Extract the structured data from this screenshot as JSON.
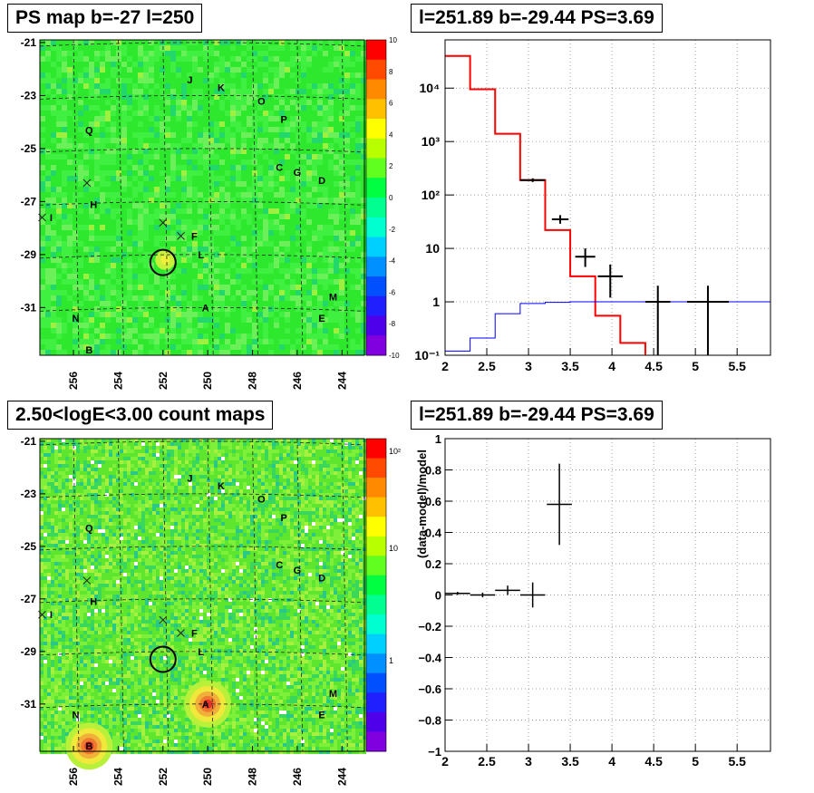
{
  "chart_data": [
    {
      "id": "ps_map",
      "type": "heatmap",
      "title": "PS map b=-27 l=250",
      "x_ticks": [
        "256",
        "254",
        "252",
        "250",
        "248",
        "246",
        "244"
      ],
      "y_ticks": [
        "-21",
        "-23",
        "-25",
        "-27",
        "-29",
        "-31"
      ],
      "xlim": [
        257.5,
        243
      ],
      "ylim": [
        -32.8,
        -20.9
      ],
      "colorbar": {
        "range": [
          -10,
          10
        ],
        "scale": "linear",
        "ticks": [
          "10",
          "8",
          "6",
          "4",
          "2",
          "0",
          "-2",
          "-4",
          "-6",
          "-8",
          "-10"
        ]
      },
      "sources": [
        {
          "label": "J",
          "l": 250.8,
          "b": -22.4
        },
        {
          "label": "K",
          "l": 249.4,
          "b": -22.7
        },
        {
          "label": "O",
          "l": 247.6,
          "b": -23.2
        },
        {
          "label": "P",
          "l": 246.6,
          "b": -23.9
        },
        {
          "label": "Q",
          "l": 255.3,
          "b": -24.3
        },
        {
          "label": "C",
          "l": 246.8,
          "b": -25.7
        },
        {
          "label": "G",
          "l": 246.0,
          "b": -25.9
        },
        {
          "label": "D",
          "l": 244.9,
          "b": -26.2
        },
        {
          "label": "H",
          "l": 255.1,
          "b": -27.1
        },
        {
          "label": "I",
          "l": 257.0,
          "b": -27.6
        },
        {
          "label": "F",
          "l": 250.6,
          "b": -28.3
        },
        {
          "label": "L",
          "l": 250.3,
          "b": -29.0
        },
        {
          "label": "M",
          "l": 244.4,
          "b": -30.6
        },
        {
          "label": "A",
          "l": 250.1,
          "b": -31.0
        },
        {
          "label": "N",
          "l": 255.9,
          "b": -31.4
        },
        {
          "label": "E",
          "l": 244.9,
          "b": -31.4
        },
        {
          "label": "B",
          "l": 255.3,
          "b": -32.6
        }
      ],
      "markers": [
        {
          "type": "cross",
          "l": 255.4,
          "b": -26.3
        },
        {
          "type": "cross",
          "l": 252.0,
          "b": -27.8
        },
        {
          "type": "cross",
          "l": 251.2,
          "b": -28.3
        },
        {
          "type": "cross",
          "l": 257.4,
          "b": -27.6
        },
        {
          "type": "circle",
          "l": 252.0,
          "b": -29.3
        }
      ]
    },
    {
      "id": "count_map",
      "type": "heatmap",
      "title": "2.50<logE<3.00 count maps",
      "x_ticks": [
        "256",
        "254",
        "252",
        "250",
        "248",
        "246",
        "244"
      ],
      "y_ticks": [
        "-21",
        "-23",
        "-25",
        "-27",
        "-29",
        "-31"
      ],
      "xlim": [
        257.5,
        243
      ],
      "ylim": [
        -32.8,
        -20.9
      ],
      "colorbar": {
        "scale": "log",
        "ticks": [
          "10²",
          "10",
          "1"
        ]
      },
      "bright_spots": [
        {
          "label": "A",
          "l": 250.0,
          "b": -31.0
        },
        {
          "label": "B",
          "l": 255.3,
          "b": -32.6
        }
      ]
    },
    {
      "id": "spectrum",
      "type": "line",
      "title": "l=251.89 b=-29.44 PS=3.69",
      "xlim": [
        2,
        5.9
      ],
      "ylim": [
        0.1,
        80000
      ],
      "yscale": "log",
      "grid": true,
      "x_ticks": [
        "2",
        "2.5",
        "3",
        "3.5",
        "4",
        "4.5",
        "5",
        "5.5"
      ],
      "y_ticks": [
        "10⁻¹",
        "1",
        "10",
        "10²",
        "10³",
        "10⁴"
      ],
      "series": [
        {
          "color": "#ff0000",
          "style": "step",
          "edges": [
            2.0,
            2.3,
            2.6,
            2.9,
            3.2,
            3.5,
            3.8,
            4.1,
            4.4
          ],
          "values": [
            40000,
            9500,
            1400,
            190,
            22,
            3,
            0.55,
            0.17
          ]
        },
        {
          "color": "#0000ff",
          "style": "step",
          "edges": [
            2.0,
            2.3,
            2.6,
            2.9,
            3.2,
            3.5,
            3.8,
            4.1,
            4.4,
            4.7,
            5.0,
            5.9
          ],
          "values": [
            0.12,
            0.21,
            0.6,
            0.93,
            0.98,
            1.0,
            1.0,
            1.0,
            1.0,
            1.0,
            1.0
          ]
        },
        {
          "color": "#000000",
          "style": "errorbar",
          "points": [
            {
              "x": 3.05,
              "xerr": 0.15,
              "y": 190,
              "lo": 175,
              "hi": 205
            },
            {
              "x": 3.38,
              "xerr": 0.1,
              "y": 35,
              "lo": 29,
              "hi": 42
            },
            {
              "x": 3.68,
              "xerr": 0.12,
              "y": 7,
              "lo": 4.5,
              "hi": 10
            },
            {
              "x": 3.98,
              "xerr": 0.15,
              "y": 3,
              "lo": 1.2,
              "hi": 5
            },
            {
              "x": 4.55,
              "xerr": 0.15,
              "y": 1,
              "lo": 0.1,
              "hi": 2
            },
            {
              "x": 5.15,
              "xerr": 0.25,
              "y": 1,
              "lo": 0.1,
              "hi": 2
            }
          ]
        }
      ]
    },
    {
      "id": "residual",
      "type": "scatter",
      "title": "l=251.89 b=-29.44 PS=3.69",
      "ylabel": "(data-model)/model",
      "xlim": [
        2,
        5.9
      ],
      "ylim": [
        -1,
        1
      ],
      "grid": true,
      "x_ticks": [
        "2",
        "2.5",
        "3",
        "3.5",
        "4",
        "4.5",
        "5",
        "5.5"
      ],
      "y_ticks": [
        "1",
        "0.8",
        "0.6",
        "0.4",
        "0.2",
        "0",
        "−0.2",
        "−0.4",
        "−0.6",
        "−0.8",
        "−1"
      ],
      "points": [
        {
          "x": 2.15,
          "xerr": 0.15,
          "y": 0.01,
          "err": 0.01
        },
        {
          "x": 2.45,
          "xerr": 0.15,
          "y": 0.0,
          "err": 0.015
        },
        {
          "x": 2.75,
          "xerr": 0.15,
          "y": 0.03,
          "err": 0.03
        },
        {
          "x": 3.05,
          "xerr": 0.15,
          "y": 0.0,
          "err": 0.08
        },
        {
          "x": 3.37,
          "xerr": 0.15,
          "y": 0.58,
          "err": 0.26
        }
      ]
    }
  ]
}
